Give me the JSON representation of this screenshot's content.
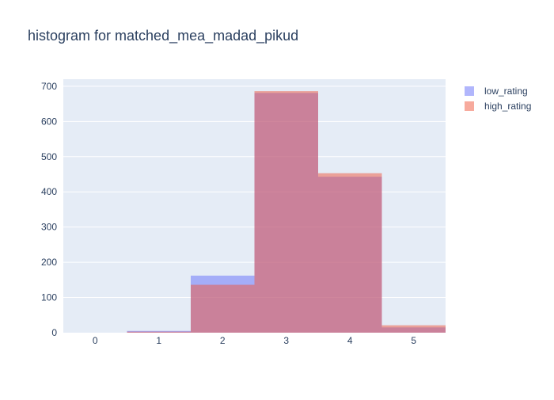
{
  "chart_data": {
    "type": "bar",
    "title": "histogram for matched_mea_madad_pikud",
    "xlabel": "",
    "ylabel": "",
    "categories": [
      "0",
      "1",
      "2",
      "3",
      "4",
      "5"
    ],
    "x_ticks": [
      "0",
      "1",
      "2",
      "3",
      "4",
      "5"
    ],
    "y_ticks": [
      "0",
      "100",
      "200",
      "300",
      "400",
      "500",
      "600",
      "700"
    ],
    "xlim": [
      -0.5,
      5.5
    ],
    "ylim": [
      0,
      720
    ],
    "barmode": "overlay",
    "grid": true,
    "legend_position": "top-right",
    "series": [
      {
        "name": "low_rating",
        "color": "#636efa",
        "opacity": 0.5,
        "values": [
          0,
          5,
          162,
          681,
          443,
          15
        ]
      },
      {
        "name": "high_rating",
        "color": "#ef553b",
        "opacity": 0.5,
        "values": [
          0,
          3,
          136,
          686,
          453,
          21
        ]
      }
    ]
  }
}
